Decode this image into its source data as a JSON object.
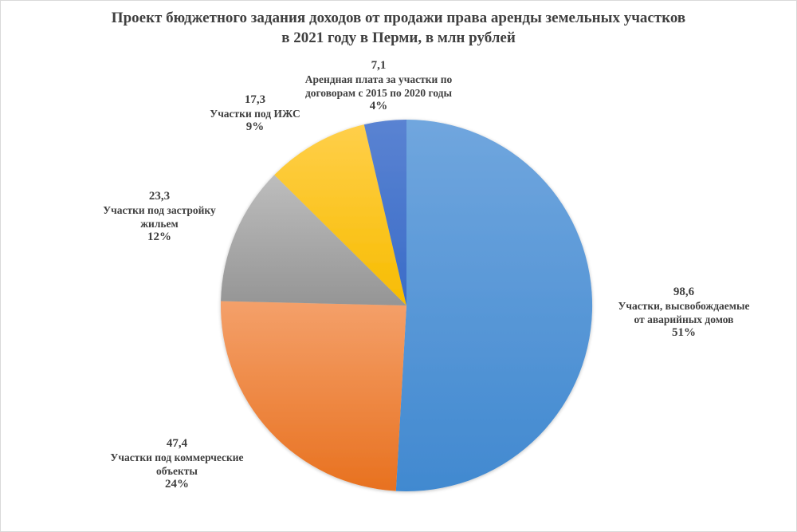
{
  "title": {
    "line1": "Проект бюджетного задания доходов от продажи права аренды земельных участков",
    "line2": "в 2021 году в Перми, в млн рублей"
  },
  "labels": [
    {
      "value": "98,6",
      "name_line1": "Участки, высвобождаемые",
      "name_line2": "от аварийных домов",
      "pct": "51%"
    },
    {
      "value": "47,4",
      "name_line1": "Участки под коммерческие",
      "name_line2": "объекты",
      "pct": "24%"
    },
    {
      "value": "23,3",
      "name_line1": "Участки под застройку",
      "name_line2": "жильем",
      "pct": "12%"
    },
    {
      "value": "17,3",
      "name_line1": "Участки под ИЖС",
      "name_line2": "",
      "pct": "9%"
    },
    {
      "value": "7,1",
      "name_line1": "Арендная плата за участки по",
      "name_line2": "договорам с 2015 по 2020 годы",
      "pct": "4%"
    }
  ],
  "colors": {
    "slice_1_top": "#70a6de",
    "slice_1_bottom": "#4189d0",
    "slice_2_top": "#f4a06a",
    "slice_2_bottom": "#e8711f",
    "slice_3_top": "#bdbdbd",
    "slice_3_bottom": "#959595",
    "slice_4_top": "#ffcf4a",
    "slice_4_bottom": "#f7bc00",
    "slice_5_top": "#5a83d2",
    "slice_5_bottom": "#3a6cc8",
    "text": "#404040"
  },
  "chart_data": {
    "type": "pie",
    "title": "Проект бюджетного задания доходов от продажи права аренды земельных участков в 2021 году в Перми, в млн рублей",
    "categories": [
      "Участки, высвобождаемые от аварийных домов",
      "Участки под коммерческие объекты",
      "Участки под застройку жильем",
      "Участки под ИЖС",
      "Арендная плата за участки по договорам с 2015 по 2020 годы"
    ],
    "values": [
      98.6,
      47.4,
      23.3,
      17.3,
      7.1
    ],
    "percentages": [
      51,
      24,
      12,
      9,
      4
    ],
    "unit": "млн рублей",
    "start_angle": "12 o'clock",
    "direction": "clockwise",
    "legend": "none (data labels on chart)"
  }
}
